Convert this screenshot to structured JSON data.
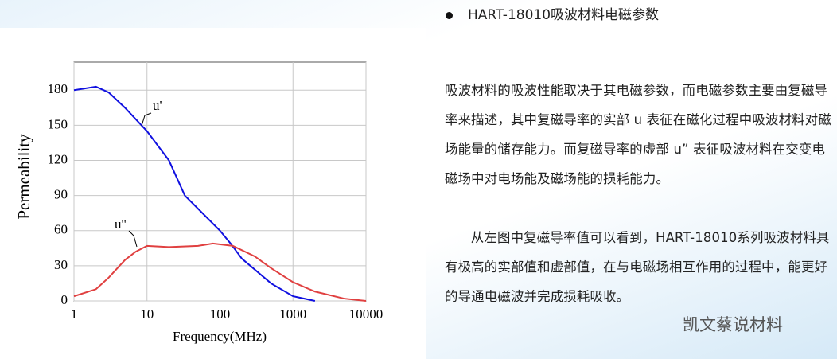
{
  "chart_data": {
    "type": "line",
    "xlabel": "Frequency(MHz)",
    "ylabel": "Permeability",
    "xscale": "log",
    "xlim": [
      1,
      10000
    ],
    "xticks": [
      1,
      10,
      100,
      1000,
      10000
    ],
    "ylim": [
      0,
      204
    ],
    "yticks": [
      0,
      30,
      60,
      90,
      120,
      150,
      180
    ],
    "grid": true,
    "series": [
      {
        "name": "u'",
        "color": "#1010e0",
        "x": [
          1,
          2,
          3,
          5,
          10,
          20,
          33,
          100,
          140,
          200,
          500,
          1000,
          2000
        ],
        "values": [
          180,
          183,
          178,
          165,
          145,
          120,
          90,
          60,
          49,
          36,
          15,
          4,
          0
        ]
      },
      {
        "name": "u''",
        "color": "#e04040",
        "x": [
          1,
          2,
          3,
          5,
          7,
          10,
          20,
          50,
          80,
          150,
          300,
          500,
          1000,
          2000,
          5000,
          10000
        ],
        "values": [
          4,
          10,
          20,
          35,
          42,
          47,
          46,
          47,
          49,
          47,
          38,
          28,
          16,
          8,
          2,
          0
        ]
      }
    ]
  },
  "heading": "HART-18010吸波材料电磁参数",
  "paragraphs": [
    "吸波材料的吸波性能取决于其电磁参数，而电磁参数主要由复磁导率来描述，其中复磁导率的实部 u 表征在磁化过程中吸波材料对磁场能量的储存能力。而复磁导率的虚部 u” 表征吸波材料在交变电磁场中对电场能及磁场能的损耗能力。",
    "从左图中复磁导率值可以看到，HART-18010系列吸波材料具有极高的实部值和虚部值，在与电磁场相互作用的过程中，能更好的导通电磁波并完成损耗吸收。"
  ],
  "watermark": "凯文蔡说材料"
}
